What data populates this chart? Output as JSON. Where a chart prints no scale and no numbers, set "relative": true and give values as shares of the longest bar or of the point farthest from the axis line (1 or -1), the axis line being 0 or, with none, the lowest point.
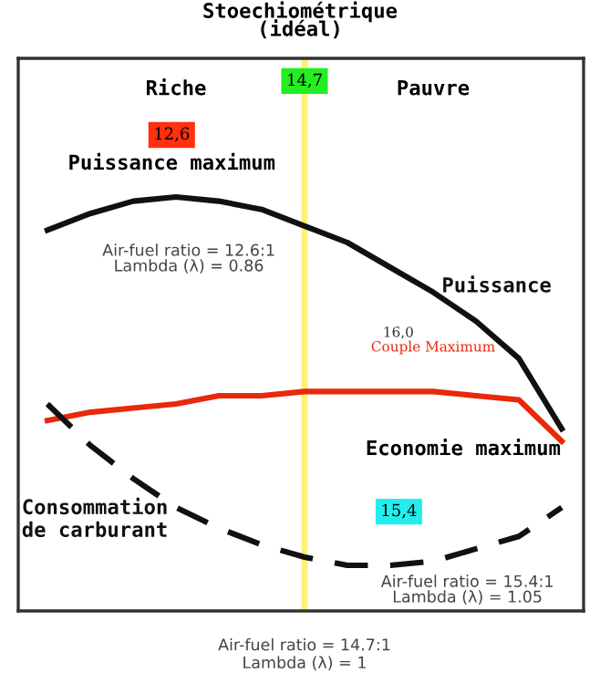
{
  "chart_data": {
    "type": "line",
    "relative": true,
    "title": "Stoechiométrique\n(idéal)",
    "categories": [
      null,
      null,
      null,
      null,
      null,
      null,
      null,
      null,
      null,
      null,
      null,
      null,
      null
    ],
    "series": [
      {
        "name": "Puissance",
        "color": "#111111",
        "line_style": "solid",
        "values": [
          0.92,
          0.96,
          0.99,
          1,
          0.99,
          0.97,
          0.93,
          0.89,
          0.83,
          0.77,
          0.7,
          0.61,
          0.44
        ]
      },
      {
        "name": "Couple Maximum",
        "color": "#e8290b",
        "line_style": "solid",
        "values": [
          0.46,
          0.48,
          0.49,
          0.5,
          0.52,
          0.52,
          0.53,
          0.53,
          0.53,
          0.53,
          0.52,
          0.51,
          0.41
        ]
      },
      {
        "name": "Consommation\nde carburant",
        "color": "#111111",
        "line_style": "dashed",
        "values": [
          0.5,
          0.4,
          0.32,
          0.25,
          0.2,
          0.16,
          0.13,
          0.11,
          0.11,
          0.12,
          0.15,
          0.18,
          0.25
        ]
      }
    ],
    "annotations": [
      "14,7",
      "Riche",
      "Pauvre",
      "12,6",
      "Puissance maximum",
      "Air-fuel ratio = 12.6:1\nLambda (λ) = 0.86",
      "Economie maximum",
      "15,4",
      "Air-fuel ratio = 15.4:1\nLambda (λ) = 1.05",
      "Air-fuel ratio = 14.7:1\nLambda (λ) = 1",
      "16,0"
    ],
    "grid": false,
    "marker": "none"
  }
}
